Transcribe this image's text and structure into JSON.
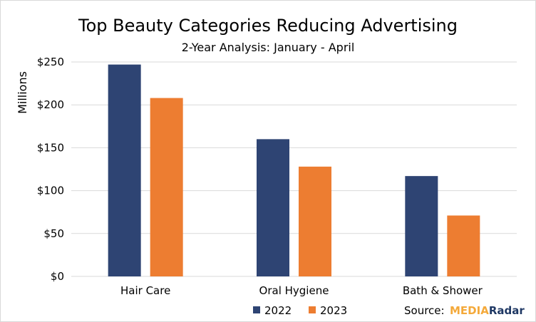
{
  "chart_data": {
    "type": "bar",
    "title": "Top Beauty Categories Reducing Advertising",
    "subtitle": "2-Year Analysis: January - April",
    "ylabel": "Millions",
    "xlabel": "",
    "categories": [
      "Hair Care",
      "Oral Hygiene",
      "Bath & Shower"
    ],
    "series": [
      {
        "name": "2022",
        "color": "#2e4473",
        "values": [
          247,
          160,
          117
        ]
      },
      {
        "name": "2023",
        "color": "#ed7d31",
        "values": [
          208,
          128,
          71
        ]
      }
    ],
    "ylim": [
      0,
      250
    ],
    "yticks": [
      0,
      50,
      100,
      150,
      200,
      250
    ],
    "ytick_labels": [
      "$0",
      "$50",
      "$100",
      "$150",
      "$200",
      "$250"
    ],
    "grid": true,
    "legend": "bottom-center"
  },
  "source": {
    "label": "Source:",
    "logo_part1": "MEDIA",
    "logo_part2": "Radar",
    "logo_part1_color": "#f4a93a",
    "logo_part2_color": "#1f3864"
  }
}
